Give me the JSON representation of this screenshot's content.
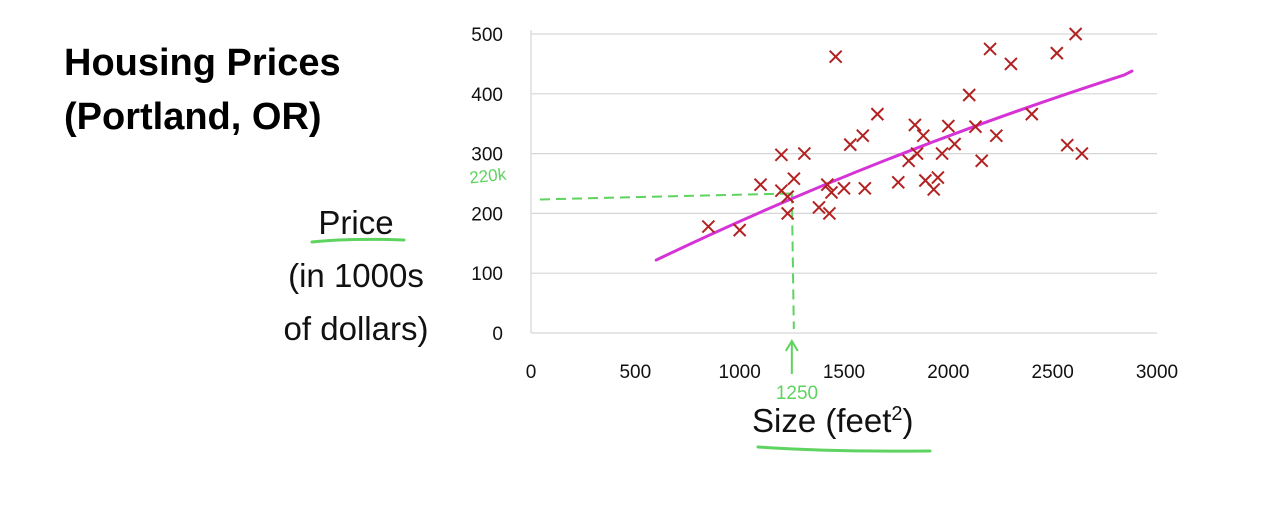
{
  "title_lines": [
    "Housing Prices",
    "(Portland, OR)"
  ],
  "ylabel_lines": [
    "Price",
    "(in 1000s",
    "of dollars)"
  ],
  "xlabel_main": "Size (feet",
  "xlabel_sup": "2",
  "xlabel_close": ")",
  "annotations": {
    "y_mark": "220k",
    "x_mark": "1250",
    "color": "#5fd35f"
  },
  "chart_data": {
    "type": "scatter",
    "title": "Housing Prices (Portland, OR)",
    "xlabel": "Size (feet²)",
    "ylabel": "Price (in 1000s of dollars)",
    "xlim": [
      0,
      3000
    ],
    "ylim": [
      0,
      500
    ],
    "x_ticks": [
      0,
      500,
      1000,
      1500,
      2000,
      2500,
      3000
    ],
    "y_ticks": [
      0,
      100,
      200,
      300,
      400,
      500
    ],
    "grid": "horizontal",
    "marker": "x",
    "marker_color": "#b22222",
    "fit_color": "#d633d6",
    "points": [
      [
        850,
        178
      ],
      [
        1000,
        172
      ],
      [
        1100,
        248
      ],
      [
        1200,
        298
      ],
      [
        1200,
        238
      ],
      [
        1230,
        228
      ],
      [
        1230,
        200
      ],
      [
        1260,
        258
      ],
      [
        1310,
        300
      ],
      [
        1380,
        210
      ],
      [
        1420,
        248
      ],
      [
        1430,
        200
      ],
      [
        1440,
        235
      ],
      [
        1460,
        462
      ],
      [
        1500,
        242
      ],
      [
        1530,
        315
      ],
      [
        1590,
        330
      ],
      [
        1600,
        242
      ],
      [
        1660,
        366
      ],
      [
        1760,
        252
      ],
      [
        1810,
        288
      ],
      [
        1840,
        348
      ],
      [
        1850,
        300
      ],
      [
        1880,
        330
      ],
      [
        1890,
        255
      ],
      [
        1930,
        240
      ],
      [
        1950,
        260
      ],
      [
        1970,
        300
      ],
      [
        2000,
        346
      ],
      [
        2030,
        316
      ],
      [
        2100,
        398
      ],
      [
        2130,
        345
      ],
      [
        2160,
        288
      ],
      [
        2200,
        475
      ],
      [
        2230,
        330
      ],
      [
        2300,
        450
      ],
      [
        2400,
        366
      ],
      [
        2520,
        468
      ],
      [
        2570,
        314
      ],
      [
        2610,
        500
      ],
      [
        2640,
        300
      ]
    ],
    "fit_line": [
      [
        600,
        122
      ],
      [
        2880,
        438
      ]
    ]
  }
}
